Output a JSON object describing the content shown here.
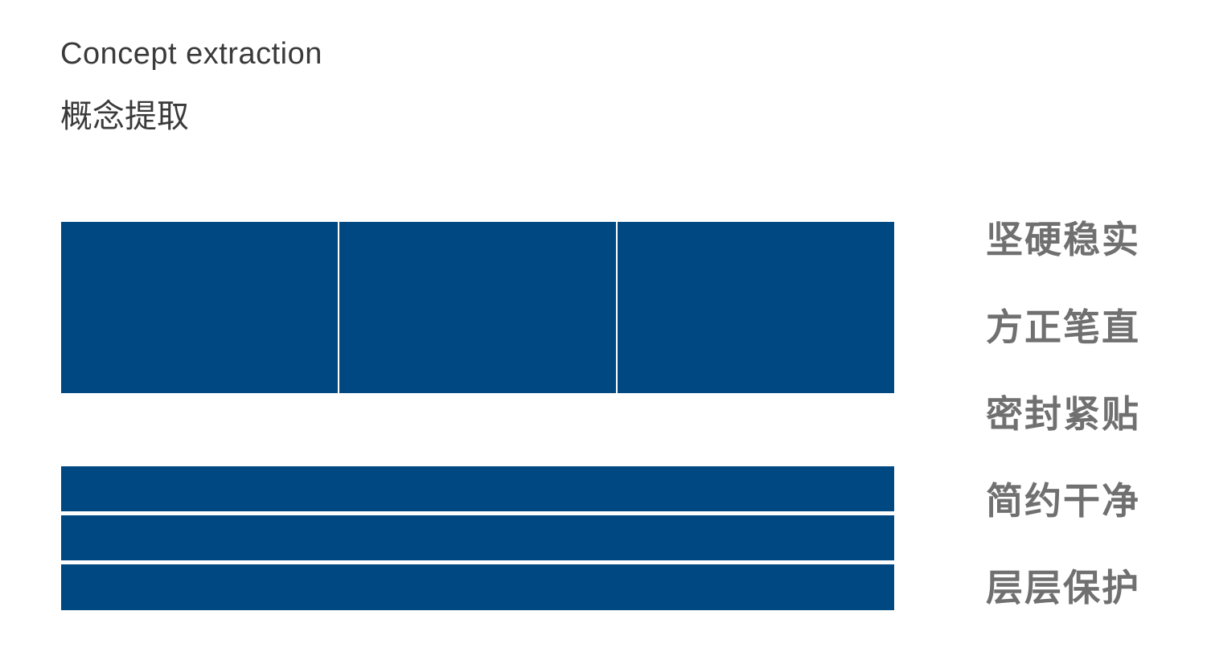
{
  "header": {
    "title_en": "Concept extraction",
    "title_cn": "概念提取"
  },
  "colors": {
    "block": "#004882",
    "keyword": "#707070"
  },
  "keywords": [
    "坚硬稳实",
    "方正笔直",
    "密封紧贴",
    "简约干净",
    "层层保护"
  ]
}
